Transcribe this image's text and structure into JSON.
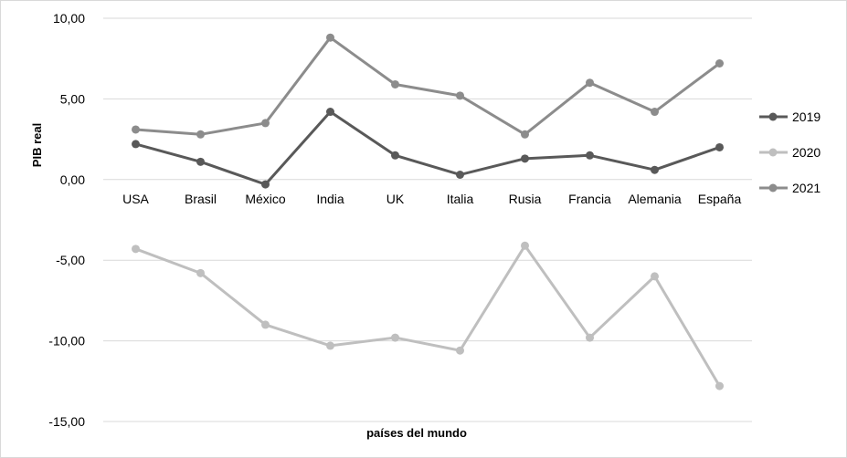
{
  "chart_data": {
    "type": "line",
    "title": "",
    "xlabel": "países del mundo",
    "ylabel": "PIB real",
    "categories": [
      "USA",
      "Brasil",
      "México",
      "India",
      "UK",
      "Italia",
      "Rusia",
      "Francia",
      "Alemania",
      "España"
    ],
    "ylim": [
      -15,
      10
    ],
    "yticks": [
      10,
      5,
      0,
      -5,
      -10,
      -15
    ],
    "ytick_labels": [
      "10,00",
      "5,00",
      "0,00",
      "-5,00",
      "-10,00",
      "-15,00"
    ],
    "grid": "horizontal",
    "legend_position": "right",
    "series": [
      {
        "name": "2019",
        "color": "#595959",
        "values": [
          2.2,
          1.1,
          -0.3,
          4.2,
          1.5,
          0.3,
          1.3,
          1.5,
          0.6,
          2.0
        ]
      },
      {
        "name": "2020",
        "color": "#bfbfbf",
        "values": [
          -4.3,
          -5.8,
          -9.0,
          -10.3,
          -9.8,
          -10.6,
          -4.1,
          -9.8,
          -6.0,
          -12.8
        ]
      },
      {
        "name": "2021",
        "color": "#8c8c8c",
        "values": [
          3.1,
          2.8,
          3.5,
          8.8,
          5.9,
          5.2,
          2.8,
          6.0,
          4.2,
          7.2
        ]
      }
    ]
  }
}
